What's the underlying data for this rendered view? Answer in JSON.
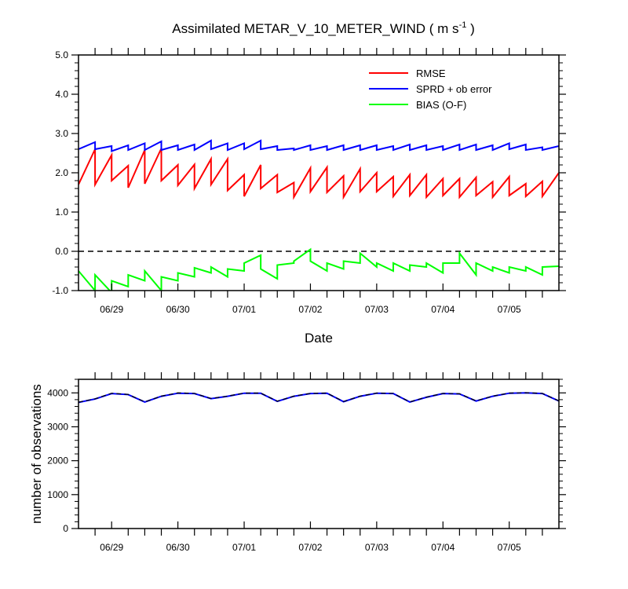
{
  "chart_data": [
    {
      "type": "line",
      "title": "Assimilated METAR_V_10_METER_WIND",
      "title_units": "( m s",
      "title_units_sup": "-1",
      "title_units_end": " )",
      "xlabel": "Date",
      "ylabel": "",
      "ylim": [
        -1.0,
        5.0
      ],
      "yticks": [
        -1.0,
        0.0,
        1.0,
        2.0,
        3.0,
        4.0,
        5.0
      ],
      "ytick_labels": [
        "-1.0",
        "0.0",
        "1.0",
        "2.0",
        "3.0",
        "4.0",
        "5.0"
      ],
      "xlim": [
        0,
        7.25
      ],
      "xticks": [
        0.5,
        1.5,
        2.5,
        3.5,
        4.5,
        5.5,
        6.5
      ],
      "xtick_labels": [
        "06/29",
        "06/30",
        "07/01",
        "07/02",
        "07/03",
        "07/04",
        "07/05"
      ],
      "reference_line": {
        "y": 0.0,
        "style": "dashed"
      },
      "grid": false,
      "legend_position": "top-right",
      "series": [
        {
          "name": "RMSE",
          "color": "#ff0000",
          "x": [
            0,
            0.25,
            0.25,
            0.5,
            0.5,
            0.75,
            0.75,
            1.0,
            1.0,
            1.25,
            1.25,
            1.5,
            1.5,
            1.75,
            1.75,
            2.0,
            2.0,
            2.25,
            2.25,
            2.5,
            2.5,
            2.75,
            2.75,
            3.0,
            3.0,
            3.25,
            3.25,
            3.5,
            3.5,
            3.75,
            3.75,
            4.0,
            4.0,
            4.25,
            4.25,
            4.5,
            4.5,
            4.75,
            4.75,
            5.0,
            5.0,
            5.25,
            5.25,
            5.5,
            5.5,
            5.75,
            5.75,
            6.0,
            6.0,
            6.25,
            6.25,
            6.5,
            6.5,
            6.75,
            6.75,
            7.0,
            7.0,
            7.25
          ],
          "y": [
            1.7,
            2.6,
            1.7,
            2.45,
            1.8,
            2.18,
            1.62,
            2.58,
            1.72,
            2.62,
            1.8,
            2.2,
            1.68,
            2.21,
            1.6,
            2.35,
            1.7,
            2.35,
            1.55,
            1.95,
            1.4,
            2.2,
            1.6,
            1.95,
            1.5,
            1.75,
            1.38,
            2.12,
            1.52,
            2.14,
            1.5,
            1.92,
            1.38,
            2.1,
            1.52,
            2.0,
            1.52,
            1.9,
            1.4,
            1.95,
            1.42,
            1.95,
            1.38,
            1.85,
            1.42,
            1.85,
            1.38,
            1.88,
            1.42,
            1.77,
            1.38,
            1.9,
            1.42,
            1.72,
            1.4,
            1.78,
            1.4,
            2.0
          ]
        },
        {
          "name": "SPRD + ob error",
          "color": "#0000ff",
          "x": [
            0,
            0.25,
            0.25,
            0.5,
            0.5,
            0.75,
            0.75,
            1.0,
            1.0,
            1.25,
            1.25,
            1.5,
            1.5,
            1.75,
            1.75,
            2.0,
            2.0,
            2.25,
            2.25,
            2.5,
            2.5,
            2.75,
            2.75,
            3.0,
            3.0,
            3.25,
            3.25,
            3.5,
            3.5,
            3.75,
            3.75,
            4.0,
            4.0,
            4.25,
            4.25,
            4.5,
            4.5,
            4.75,
            4.75,
            5.0,
            5.0,
            5.25,
            5.25,
            5.5,
            5.5,
            5.75,
            5.75,
            6.0,
            6.0,
            6.25,
            6.25,
            6.5,
            6.5,
            6.75,
            6.75,
            7.0,
            7.0,
            7.25
          ],
          "y": [
            2.6,
            2.78,
            2.6,
            2.68,
            2.55,
            2.7,
            2.58,
            2.75,
            2.58,
            2.8,
            2.58,
            2.7,
            2.58,
            2.72,
            2.58,
            2.82,
            2.6,
            2.75,
            2.58,
            2.75,
            2.6,
            2.82,
            2.6,
            2.68,
            2.58,
            2.62,
            2.58,
            2.7,
            2.58,
            2.68,
            2.58,
            2.7,
            2.58,
            2.7,
            2.58,
            2.7,
            2.58,
            2.68,
            2.58,
            2.72,
            2.58,
            2.7,
            2.58,
            2.68,
            2.58,
            2.72,
            2.58,
            2.72,
            2.58,
            2.7,
            2.58,
            2.75,
            2.6,
            2.72,
            2.58,
            2.65,
            2.58,
            2.68
          ]
        },
        {
          "name": "BIAS (O-F)",
          "color": "#00ff00",
          "x": [
            0,
            0.25,
            0.25,
            0.5,
            0.5,
            0.75,
            0.75,
            1.0,
            1.0,
            1.25,
            1.25,
            1.5,
            1.5,
            1.75,
            1.75,
            2.0,
            2.0,
            2.25,
            2.25,
            2.5,
            2.5,
            2.75,
            2.75,
            3.0,
            3.0,
            3.25,
            3.25,
            3.5,
            3.5,
            3.75,
            3.75,
            4.0,
            4.0,
            4.25,
            4.25,
            4.5,
            4.5,
            4.75,
            4.75,
            5.0,
            5.0,
            5.25,
            5.25,
            5.5,
            5.5,
            5.75,
            5.75,
            6.0,
            6.0,
            6.25,
            6.25,
            6.5,
            6.5,
            6.75,
            6.75,
            7.0,
            7.0,
            7.25
          ],
          "y": [
            -0.5,
            -1.0,
            -0.6,
            -1.05,
            -0.75,
            -0.9,
            -0.6,
            -0.75,
            -0.5,
            -1.0,
            -0.65,
            -0.75,
            -0.55,
            -0.65,
            -0.42,
            -0.55,
            -0.4,
            -0.65,
            -0.45,
            -0.5,
            -0.3,
            -0.1,
            -0.45,
            -0.7,
            -0.35,
            -0.3,
            -0.25,
            0.05,
            -0.25,
            -0.5,
            -0.3,
            -0.45,
            -0.25,
            -0.3,
            -0.05,
            -0.4,
            -0.3,
            -0.5,
            -0.3,
            -0.5,
            -0.35,
            -0.4,
            -0.3,
            -0.55,
            -0.3,
            -0.3,
            -0.05,
            -0.6,
            -0.3,
            -0.5,
            -0.4,
            -0.55,
            -0.4,
            -0.5,
            -0.4,
            -0.6,
            -0.4,
            -0.38
          ]
        }
      ]
    },
    {
      "type": "line",
      "title": "",
      "xlabel": "",
      "ylabel": "number of observations",
      "ylim": [
        0,
        4400
      ],
      "yticks": [
        0,
        1000,
        2000,
        3000,
        4000
      ],
      "ytick_labels": [
        "0",
        "1000",
        "2000",
        "3000",
        "4000"
      ],
      "xlim": [
        0,
        7.25
      ],
      "xticks": [
        0.5,
        1.5,
        2.5,
        3.5,
        4.5,
        5.5,
        6.5
      ],
      "xtick_labels": [
        "06/29",
        "06/30",
        "07/01",
        "07/02",
        "07/03",
        "07/04",
        "07/05"
      ],
      "grid": false,
      "series": [
        {
          "color": "#0000ff",
          "x": [
            0,
            0.25,
            0.5,
            0.75,
            1.0,
            1.25,
            1.5,
            1.75,
            2.0,
            2.25,
            2.5,
            2.75,
            3.0,
            3.25,
            3.5,
            3.75,
            4.0,
            4.25,
            4.5,
            4.75,
            5.0,
            5.25,
            5.5,
            5.75,
            6.0,
            6.25,
            6.5,
            6.75,
            7.0,
            7.25
          ],
          "y": [
            3720,
            3820,
            3980,
            3950,
            3730,
            3900,
            3990,
            3980,
            3830,
            3900,
            3990,
            3990,
            3750,
            3900,
            3980,
            3990,
            3740,
            3900,
            3990,
            3980,
            3730,
            3870,
            3980,
            3970,
            3760,
            3900,
            3990,
            4000,
            3980,
            3760
          ]
        },
        {
          "color": "#000000",
          "dashed": true,
          "x": [
            0,
            0.25,
            0.5,
            0.75,
            1.0,
            1.25,
            1.5,
            1.75,
            2.0,
            2.25,
            2.5,
            2.75,
            3.0,
            3.25,
            3.5,
            3.75,
            4.0,
            4.25,
            4.5,
            4.75,
            5.0,
            5.25,
            5.5,
            5.75,
            6.0,
            6.25,
            6.5,
            6.75,
            7.0,
            7.25
          ],
          "y": [
            3725,
            3825,
            3990,
            3955,
            3735,
            3905,
            4000,
            3985,
            3835,
            3905,
            3995,
            3995,
            3755,
            3905,
            3985,
            3995,
            3745,
            3905,
            3995,
            3985,
            3735,
            3875,
            3985,
            3975,
            3765,
            3905,
            3995,
            4005,
            3985,
            3765
          ]
        }
      ]
    }
  ]
}
